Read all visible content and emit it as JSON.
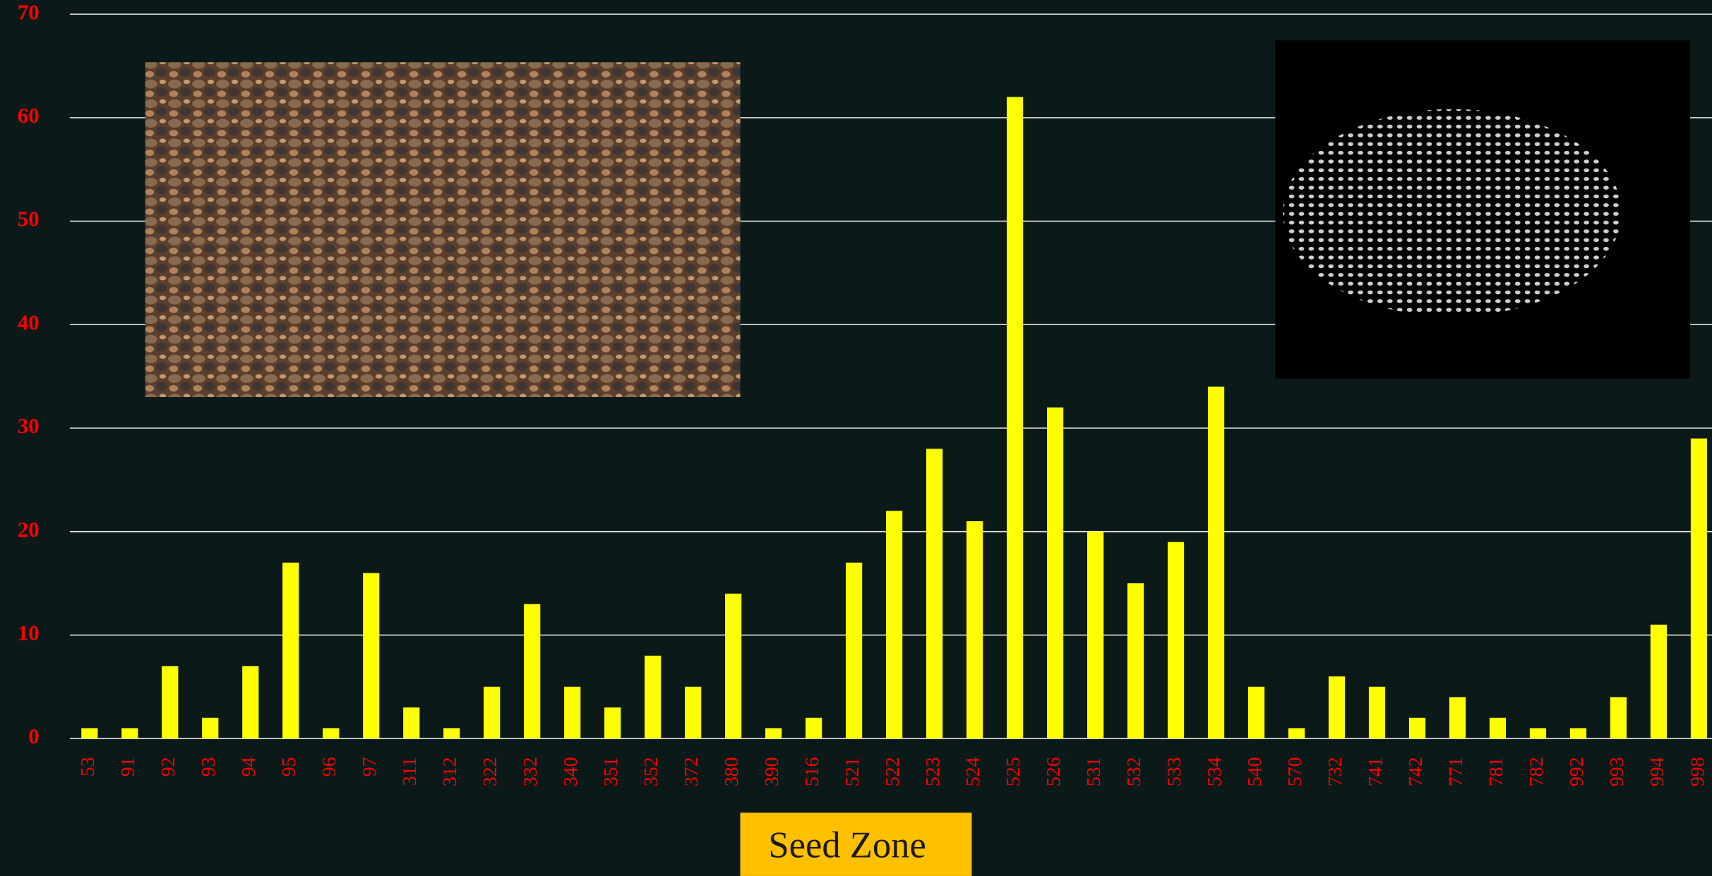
{
  "chart_data": {
    "type": "bar",
    "x_label": "Seed Zone",
    "categories": [
      "53",
      "91",
      "92",
      "93",
      "94",
      "95",
      "96",
      "97",
      "311",
      "312",
      "322",
      "332",
      "340",
      "351",
      "352",
      "372",
      "380",
      "390",
      "516",
      "521",
      "522",
      "523",
      "524",
      "525",
      "526",
      "531",
      "532",
      "533",
      "534",
      "540",
      "570",
      "732",
      "741",
      "742",
      "771",
      "781",
      "782",
      "992",
      "993",
      "994",
      "998"
    ],
    "values": [
      1,
      1,
      7,
      2,
      7,
      17,
      1,
      16,
      3,
      1,
      5,
      13,
      5,
      3,
      8,
      5,
      14,
      1,
      2,
      17,
      22,
      28,
      21,
      62,
      32,
      20,
      15,
      19,
      34,
      5,
      1,
      6,
      5,
      2,
      4,
      2,
      1,
      1,
      4,
      11,
      29
    ],
    "color": "#ffff00",
    "ylim": [
      0,
      70
    ],
    "yticks": [
      0,
      10,
      20,
      30,
      40,
      50,
      60,
      70
    ],
    "grid": true
  }
}
